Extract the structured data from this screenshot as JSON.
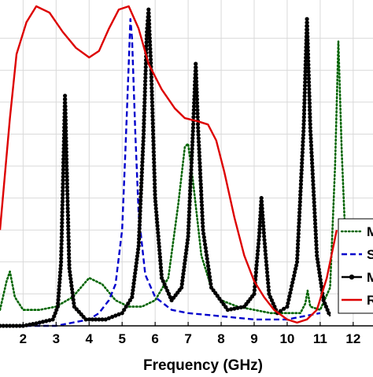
{
  "chart_data": {
    "type": "line",
    "xlabel": "Frequency (GHz)",
    "ylabel": "",
    "xlim": [
      1.3,
      12.6
    ],
    "ylim": [
      0,
      1
    ],
    "grid": true,
    "legend_position": "right",
    "x_ticks": [
      2,
      3,
      4,
      5,
      6,
      7,
      8,
      9,
      10,
      11,
      12
    ],
    "x_tick_labels": [
      "2",
      "3",
      "4",
      "5",
      "6",
      "7",
      "8",
      "9",
      "10",
      "11",
      "12"
    ],
    "series": [
      {
        "name": "M",
        "color": "#006400",
        "style": "dotted",
        "points": [
          [
            1.3,
            0.05
          ],
          [
            1.5,
            0.14
          ],
          [
            1.6,
            0.17
          ],
          [
            1.75,
            0.09
          ],
          [
            2.0,
            0.05
          ],
          [
            2.5,
            0.05
          ],
          [
            3.0,
            0.06
          ],
          [
            3.5,
            0.09
          ],
          [
            4.0,
            0.15
          ],
          [
            4.4,
            0.13
          ],
          [
            4.8,
            0.08
          ],
          [
            5.2,
            0.06
          ],
          [
            5.6,
            0.06
          ],
          [
            6.0,
            0.08
          ],
          [
            6.4,
            0.15
          ],
          [
            6.7,
            0.38
          ],
          [
            6.9,
            0.56
          ],
          [
            7.0,
            0.57
          ],
          [
            7.15,
            0.45
          ],
          [
            7.4,
            0.22
          ],
          [
            7.7,
            0.12
          ],
          [
            8.0,
            0.08
          ],
          [
            8.5,
            0.06
          ],
          [
            9.0,
            0.05
          ],
          [
            9.5,
            0.04
          ],
          [
            10.0,
            0.04
          ],
          [
            10.4,
            0.04
          ],
          [
            10.55,
            0.07
          ],
          [
            10.62,
            0.11
          ],
          [
            10.7,
            0.06
          ],
          [
            11.0,
            0.05
          ],
          [
            11.3,
            0.12
          ],
          [
            11.45,
            0.5
          ],
          [
            11.55,
            0.89
          ],
          [
            11.65,
            0.55
          ],
          [
            11.8,
            0.18
          ],
          [
            12.0,
            0.09
          ],
          [
            12.3,
            0.06
          ]
        ]
      },
      {
        "name": "S",
        "color": "#0000cc",
        "style": "dashed",
        "points": [
          [
            1.3,
            0.0
          ],
          [
            3.0,
            0.0
          ],
          [
            3.5,
            0.01
          ],
          [
            4.0,
            0.02
          ],
          [
            4.3,
            0.04
          ],
          [
            4.6,
            0.08
          ],
          [
            4.8,
            0.13
          ],
          [
            5.0,
            0.3
          ],
          [
            5.1,
            0.55
          ],
          [
            5.2,
            0.82
          ],
          [
            5.25,
            0.96
          ],
          [
            5.3,
            0.9
          ],
          [
            5.4,
            0.6
          ],
          [
            5.5,
            0.35
          ],
          [
            5.7,
            0.16
          ],
          [
            6.0,
            0.09
          ],
          [
            6.5,
            0.05
          ],
          [
            7.0,
            0.04
          ],
          [
            8.0,
            0.03
          ],
          [
            9.0,
            0.02
          ],
          [
            10.0,
            0.02
          ],
          [
            10.5,
            0.03
          ],
          [
            11.0,
            0.04
          ]
        ]
      },
      {
        "name": "M",
        "color": "#000000",
        "style": "solid-marker",
        "points": [
          [
            1.3,
            0.0
          ],
          [
            2.0,
            0.0
          ],
          [
            2.5,
            0.01
          ],
          [
            2.9,
            0.02
          ],
          [
            3.05,
            0.06
          ],
          [
            3.15,
            0.2
          ],
          [
            3.22,
            0.5
          ],
          [
            3.27,
            0.72
          ],
          [
            3.32,
            0.5
          ],
          [
            3.4,
            0.18
          ],
          [
            3.55,
            0.06
          ],
          [
            3.9,
            0.02
          ],
          [
            4.5,
            0.02
          ],
          [
            5.0,
            0.04
          ],
          [
            5.3,
            0.09
          ],
          [
            5.5,
            0.25
          ],
          [
            5.65,
            0.6
          ],
          [
            5.75,
            0.92
          ],
          [
            5.8,
            0.99
          ],
          [
            5.88,
            0.8
          ],
          [
            6.0,
            0.4
          ],
          [
            6.2,
            0.15
          ],
          [
            6.5,
            0.08
          ],
          [
            6.8,
            0.12
          ],
          [
            7.0,
            0.28
          ],
          [
            7.15,
            0.62
          ],
          [
            7.23,
            0.82
          ],
          [
            7.3,
            0.62
          ],
          [
            7.45,
            0.3
          ],
          [
            7.7,
            0.12
          ],
          [
            8.2,
            0.05
          ],
          [
            8.7,
            0.06
          ],
          [
            9.0,
            0.1
          ],
          [
            9.15,
            0.28
          ],
          [
            9.22,
            0.4
          ],
          [
            9.3,
            0.28
          ],
          [
            9.45,
            0.1
          ],
          [
            9.7,
            0.04
          ],
          [
            10.0,
            0.06
          ],
          [
            10.3,
            0.2
          ],
          [
            10.5,
            0.62
          ],
          [
            10.6,
            0.96
          ],
          [
            10.7,
            0.62
          ],
          [
            10.9,
            0.22
          ],
          [
            11.1,
            0.08
          ],
          [
            11.3,
            0.03
          ]
        ]
      },
      {
        "name": "R",
        "color": "#dd0000",
        "style": "solid",
        "points": [
          [
            1.3,
            0.3
          ],
          [
            1.6,
            0.65
          ],
          [
            1.8,
            0.85
          ],
          [
            2.1,
            0.95
          ],
          [
            2.4,
            1.0
          ],
          [
            2.8,
            0.98
          ],
          [
            3.2,
            0.92
          ],
          [
            3.6,
            0.87
          ],
          [
            4.0,
            0.84
          ],
          [
            4.3,
            0.86
          ],
          [
            4.6,
            0.93
          ],
          [
            4.9,
            0.99
          ],
          [
            5.2,
            1.0
          ],
          [
            5.5,
            0.93
          ],
          [
            5.8,
            0.82
          ],
          [
            6.2,
            0.74
          ],
          [
            6.6,
            0.68
          ],
          [
            6.9,
            0.65
          ],
          [
            7.3,
            0.64
          ],
          [
            7.6,
            0.63
          ],
          [
            7.85,
            0.58
          ],
          [
            8.1,
            0.48
          ],
          [
            8.4,
            0.34
          ],
          [
            8.7,
            0.22
          ],
          [
            9.0,
            0.14
          ],
          [
            9.3,
            0.09
          ],
          [
            9.6,
            0.05
          ],
          [
            10.0,
            0.02
          ],
          [
            10.3,
            0.01
          ],
          [
            10.6,
            0.02
          ],
          [
            10.9,
            0.05
          ],
          [
            11.2,
            0.15
          ],
          [
            11.5,
            0.3
          ]
        ]
      }
    ]
  }
}
